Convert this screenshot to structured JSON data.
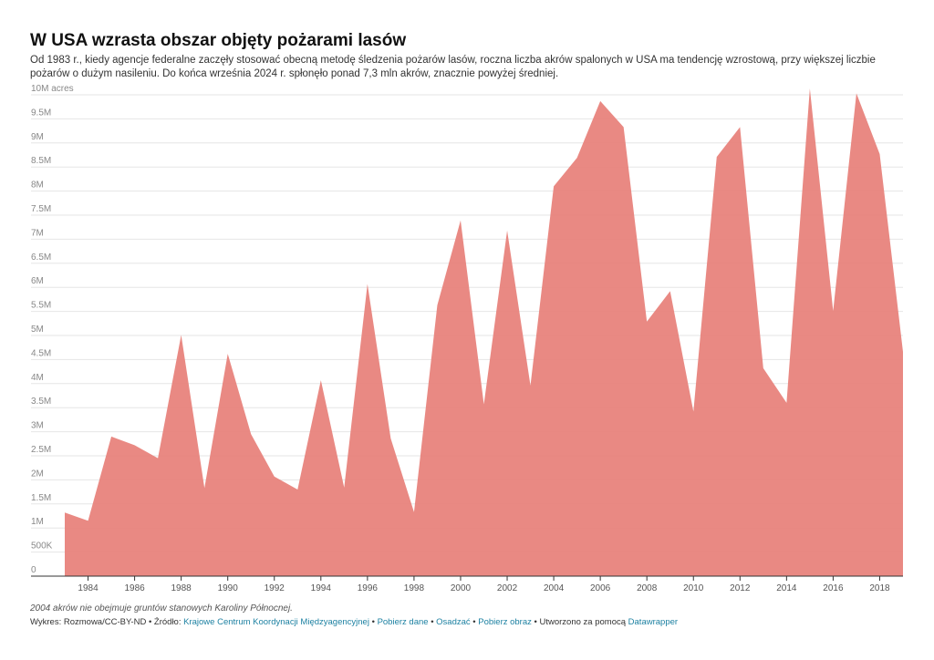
{
  "chart_data": {
    "type": "area",
    "title": "W USA wzrasta obszar objęty pożarami lasów",
    "subtitle": "Od 1983 r., kiedy agencje federalne zaczęły stosować obecną metodę śledzenia pożarów lasów, roczna liczba akrów spalonych w USA ma tendencję wzrostową, przy większej liczbie pożarów o dużym nasileniu. Do końca września 2024 r. spłonęło ponad 7,3 mln akrów, znacznie powyżej średniej.",
    "x": [
      1983,
      1984,
      1985,
      1986,
      1987,
      1988,
      1989,
      1990,
      1991,
      1992,
      1993,
      1994,
      1995,
      1996,
      1997,
      1998,
      1999,
      2000,
      2001,
      2002,
      2003,
      2004,
      2005,
      2006,
      2007,
      2008,
      2009,
      2010,
      2011,
      2012,
      2013,
      2014,
      2015,
      2016,
      2017,
      2018,
      2019
    ],
    "values": [
      1320000,
      1150000,
      2900000,
      2720000,
      2450000,
      5010000,
      1830000,
      4620000,
      2950000,
      2070000,
      1800000,
      4070000,
      1840000,
      6070000,
      2860000,
      1330000,
      5630000,
      7390000,
      3570000,
      7180000,
      3960000,
      8100000,
      8690000,
      9870000,
      9330000,
      5290000,
      5920000,
      3420000,
      8710000,
      9330000,
      4320000,
      3600000,
      10130000,
      5510000,
      10030000,
      8770000,
      4660000
    ],
    "ylim": [
      0,
      10000000
    ],
    "y_ticks": [
      0,
      500000,
      1000000,
      1500000,
      2000000,
      2500000,
      3000000,
      3500000,
      4000000,
      4500000,
      5000000,
      5500000,
      6000000,
      6500000,
      7000000,
      7500000,
      8000000,
      8500000,
      9000000,
      9500000,
      10000000
    ],
    "y_tick_labels": [
      "0",
      "500K",
      "1M",
      "1.5M",
      "2M",
      "2.5M",
      "3M",
      "3.5M",
      "4M",
      "4.5M",
      "5M",
      "5.5M",
      "6M",
      "6.5M",
      "7M",
      "7.5M",
      "8M",
      "8.5M",
      "9M",
      "9.5M",
      "10M acres"
    ],
    "x_ticks": [
      1984,
      1986,
      1988,
      1990,
      1992,
      1994,
      1996,
      1998,
      2000,
      2002,
      2004,
      2006,
      2008,
      2010,
      2012,
      2014,
      2016,
      2018
    ],
    "color": "#e8837c",
    "grid": true
  },
  "footer": {
    "note": "2004 akrów nie obejmuje gruntów stanowych Karoliny Północnej.",
    "credit": "Wykres: Rozmowa/CC-BY-ND • Źródło:",
    "source_link": "Krajowe Centrum Koordynacji Międzyagencyjnej",
    "sep1": "•",
    "get_data": "Pobierz dane",
    "sep2": "•",
    "embed": "Osadzać",
    "sep3": "•",
    "get_image": "Pobierz obraz",
    "made_with": "• Utworzono za pomocą",
    "tool": "Datawrapper"
  }
}
